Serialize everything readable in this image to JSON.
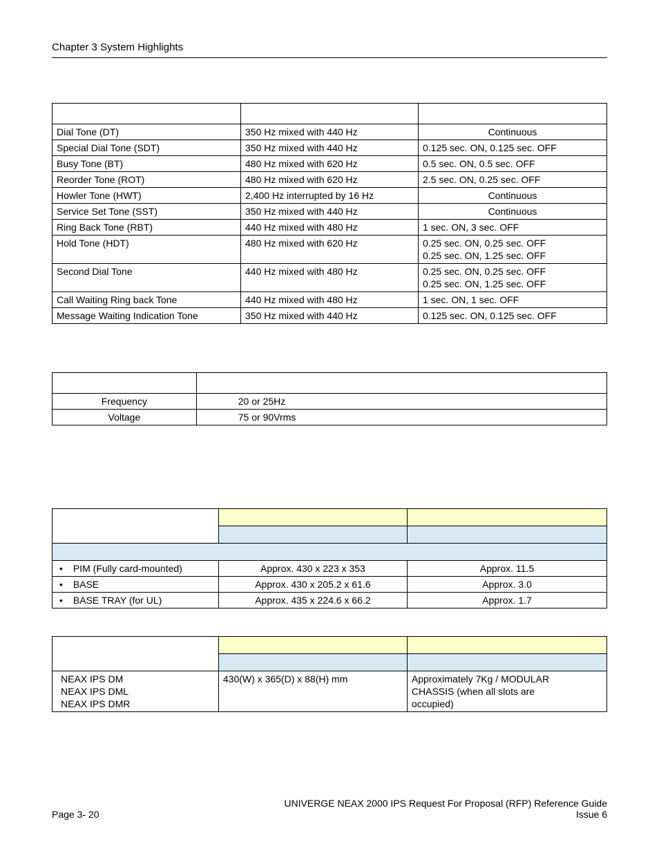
{
  "header": {
    "chapter": "Chapter 3   System Highlights"
  },
  "tone_table": {
    "rows": [
      {
        "name": "Dial Tone (DT)",
        "freq": "350 Hz mixed with 440 Hz",
        "timing": "Continuous",
        "center": true
      },
      {
        "name": "Special Dial Tone (SDT)",
        "freq": "350 Hz mixed with 440 Hz",
        "timing": "0.125 sec. ON, 0.125 sec. OFF",
        "center": false
      },
      {
        "name": "Busy Tone (BT)",
        "freq": "480 Hz mixed with 620 Hz",
        "timing": "0.5 sec. ON, 0.5 sec. OFF",
        "center": false
      },
      {
        "name": "Reorder Tone (ROT)",
        "freq": "480 Hz mixed with 620 Hz",
        "timing": "2.5 sec. ON, 0.25 sec. OFF",
        "center": false
      },
      {
        "name": "Howler Tone (HWT)",
        "freq": "2,400 Hz interrupted by 16 Hz",
        "timing": "Continuous",
        "center": true
      },
      {
        "name": "Service Set Tone (SST)",
        "freq": "350 Hz mixed with 440 Hz",
        "timing": "Continuous",
        "center": true
      },
      {
        "name": "Ring Back Tone (RBT)",
        "freq": "440 Hz mixed with 480 Hz",
        "timing": "1 sec. ON, 3 sec. OFF",
        "center": false
      },
      {
        "name": "Hold Tone (HDT)",
        "freq": "480 Hz mixed with 620 Hz",
        "timing": "0.25 sec. ON, 0.25 sec. OFF\n0.25 sec. ON, 1.25 sec. OFF",
        "center": false
      },
      {
        "name": "Second Dial Tone",
        "freq": "440 Hz mixed with 480 Hz",
        "timing": "0.25 sec. ON, 0.25 sec. OFF\n0.25 sec. ON, 1.25 sec. OFF",
        "center": false
      },
      {
        "name": "Call Waiting Ring back Tone",
        "freq": "440 Hz mixed with 480 Hz",
        "timing": "1 sec. ON, 1 sec. OFF",
        "center": false
      },
      {
        "name": "Message Waiting Indication Tone",
        "freq": "350 Hz mixed with 440 Hz",
        "timing": "0.125 sec. ON, 0.125 sec. OFF",
        "center": false
      }
    ],
    "col_widths": [
      "34%",
      "32%",
      "34%"
    ]
  },
  "ring_table": {
    "rows": [
      {
        "label": "Frequency",
        "value": "20 or 25Hz"
      },
      {
        "label": "Voltage",
        "value": "75 or 90Vrms"
      }
    ],
    "col_widths": [
      "26%",
      "74%"
    ]
  },
  "dim_table": {
    "rows": [
      {
        "item": "PIM (Fully card-mounted)",
        "dim": "Approx. 430 x 223 x 353",
        "weight": "Approx. 11.5"
      },
      {
        "item": "BASE",
        "dim": "Approx. 430 x 205.2 x 61.6",
        "weight": "Approx. 3.0"
      },
      {
        "item": "BASE TRAY (for UL)",
        "dim": "Approx. 435 x 224.6 x 66.2",
        "weight": "Approx. 1.7"
      }
    ],
    "col_widths": [
      "30%",
      "34%",
      "36%"
    ]
  },
  "neax_table": {
    "item_lines": [
      "NEAX IPS DM",
      "NEAX IPS DML",
      "NEAX IPS DMR"
    ],
    "dim": "430(W) x 365(D) x 88(H) mm",
    "weight_lines": [
      "Approximately 7Kg / MODULAR",
      "CHASSIS (when all slots are",
      "occupied)"
    ],
    "col_widths": [
      "30%",
      "34%",
      "36%"
    ]
  },
  "footer": {
    "left": "Page 3- 20",
    "right_line1": "UNIVERGE NEAX 2000 IPS Request For Proposal (RFP) Reference Guide",
    "right_line2": "Issue 6"
  },
  "colors": {
    "yellow_header": "#ffffcc",
    "blue_header": "#d6e9f5",
    "border": "#000000",
    "background": "#ffffff"
  }
}
